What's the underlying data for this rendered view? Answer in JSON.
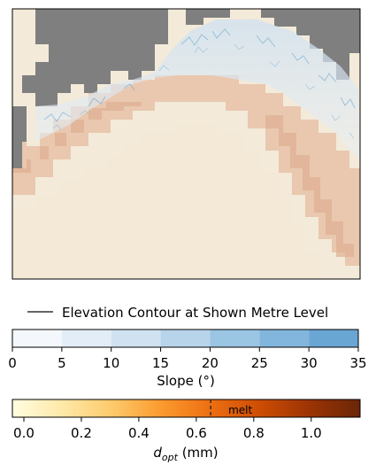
{
  "chart_data": [
    {
      "type": "heatmap",
      "title": "",
      "description_visible": "raster map with grey no-data areas, blue-shaded slope overlay, orange shading",
      "colors": {
        "nodata": "#7f7f7f",
        "background_light": "#f3ead9",
        "orange_band": "#e8bfa5",
        "slope_blue": "#7ab0d8"
      }
    },
    {
      "type": "legend",
      "entries": [
        {
          "label": "Elevation Contour at Shown Metre Level",
          "color": "#333333",
          "style": "solid-line"
        }
      ]
    },
    {
      "type": "colorbar",
      "label": "Slope (°)",
      "ticks": [
        0,
        5,
        10,
        15,
        20,
        25,
        30,
        35
      ],
      "range": [
        0,
        35
      ],
      "bins": 7,
      "colors": [
        "#f4f8fd",
        "#e3edf8",
        "#d0e2f2",
        "#b8d4ea",
        "#9ac5e3",
        "#82b6dc",
        "#6aa6d4"
      ]
    },
    {
      "type": "colorbar",
      "label_parts": {
        "var": "d",
        "sub": "opt",
        "unit": " (mm)"
      },
      "ticks": [
        "0.0",
        "0.2",
        "0.4",
        "0.6",
        "0.8",
        "1.0"
      ],
      "tick_values": [
        0.0,
        0.2,
        0.4,
        0.6,
        0.8,
        1.0
      ],
      "range": [
        -0.04,
        1.17
      ],
      "marker": {
        "value": 0.65,
        "label": "melt",
        "style": "dashed"
      },
      "gradient": [
        "#fffde0",
        "#fee9a8",
        "#fdca6c",
        "#fb9a2e",
        "#ed6e11",
        "#cc4c03",
        "#9b3304",
        "#6b2608"
      ]
    }
  ]
}
